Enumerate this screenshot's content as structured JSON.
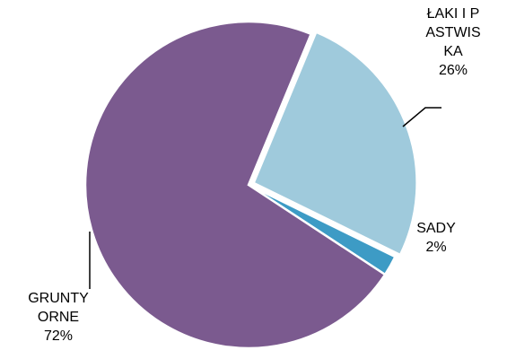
{
  "chart_data": {
    "type": "pie",
    "categories": [
      "ŁAKI I PASTWISKA",
      "SADY",
      "GRUNTY ORNE"
    ],
    "values": [
      26,
      2,
      72
    ],
    "value_labels": [
      "26%",
      "2%",
      "72%"
    ],
    "colors": [
      "#9fcadc",
      "#3d9bc5",
      "#7b5a8f"
    ]
  }
}
